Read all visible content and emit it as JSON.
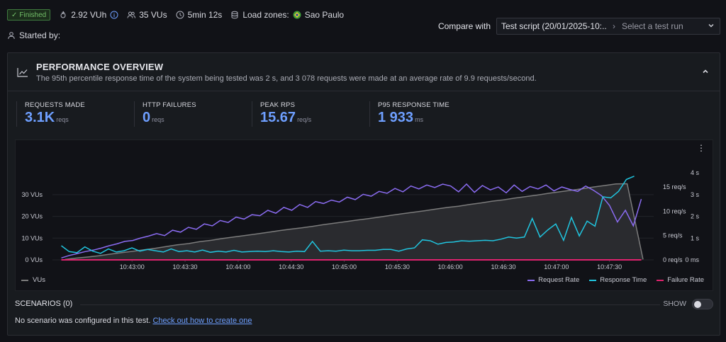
{
  "status": {
    "badge": "Finished",
    "vuh": "2.92 VUh",
    "vus": "35 VUs",
    "duration": "5min 12s",
    "load_zones_label": "Load zones:",
    "zone": "Sao Paulo"
  },
  "started_by": "Started by:",
  "compare": {
    "label": "Compare with",
    "value": "Test script (20/01/2025-10:...",
    "separator": "›",
    "placeholder": "Select a test run"
  },
  "overview": {
    "title": "PERFORMANCE OVERVIEW",
    "description": "The 95th percentile response time of the system being tested was 2 s, and 3 078 requests were made at an average rate of 9.9 requests/second."
  },
  "metrics": [
    {
      "label": "REQUESTS MADE",
      "value": "3.1K",
      "unit": "reqs"
    },
    {
      "label": "HTTP FAILURES",
      "value": "0",
      "unit": "reqs"
    },
    {
      "label": "PEAK RPS",
      "value": "15.67",
      "unit": "req/s"
    },
    {
      "label": "P95 RESPONSE TIME",
      "value": "1 933",
      "unit": "ms"
    }
  ],
  "chart_data": {
    "type": "line",
    "x_ticks": [
      "10:43:00",
      "10:43:30",
      "10:44:00",
      "10:44:30",
      "10:45:00",
      "10:45:30",
      "10:46:00",
      "10:46:30",
      "10:47:00",
      "10:47:30"
    ],
    "y_left_ticks": [
      "0 VUs",
      "10 VUs",
      "20 VUs",
      "30 VUs"
    ],
    "y_mid_ticks": [
      "0 req/s",
      "5 req/s",
      "10 req/s",
      "15 req/s"
    ],
    "y_right_ticks": [
      "0 ms",
      "1 s",
      "2 s",
      "3 s",
      "4 s"
    ],
    "x_range_seconds": [
      -45,
      295
    ],
    "legend": {
      "vus": "VUs",
      "request_rate": "Request Rate",
      "response_time": "Response Time",
      "failure_rate": "Failure Rate"
    },
    "colors": {
      "vus": "#7c7c7c",
      "request_rate": "#8b6cf2",
      "response_time": "#20c5df",
      "failure_rate": "#e0226e"
    },
    "series": [
      {
        "name": "VUs",
        "unit": "VUs",
        "values": [
          0.2,
          0.8,
          1.3,
          1.9,
          2.6,
          3.3,
          3.9,
          4.6,
          5.3,
          6.1,
          6.9,
          7.5,
          8.4,
          9.0,
          9.8,
          10.5,
          11.2,
          11.9,
          12.6,
          13.4,
          14.1,
          14.7,
          15.4,
          16.2,
          16.9,
          17.6,
          18.3,
          19.0,
          19.7,
          20.5,
          21.2,
          21.9,
          22.6,
          23.4,
          24.1,
          24.7,
          25.5,
          26.2,
          27.0,
          27.6,
          28.4,
          29.1,
          29.8,
          30.6,
          31.3,
          32.0,
          32.7,
          33.5,
          34.2,
          34.9,
          35.0,
          0.2
        ]
      },
      {
        "name": "Request Rate",
        "unit": "req/s",
        "values": [
          0.4,
          0.9,
          1.3,
          1.7,
          2.0,
          2.4,
          2.9,
          3.3,
          3.8,
          4.0,
          4.5,
          4.9,
          5.4,
          5.0,
          6.1,
          5.7,
          6.7,
          6.3,
          7.4,
          7.0,
          8.1,
          7.7,
          8.8,
          8.4,
          9.3,
          9.1,
          10.2,
          9.6,
          10.8,
          10.2,
          11.4,
          10.8,
          12.0,
          11.6,
          12.3,
          11.9,
          12.9,
          12.4,
          13.5,
          13.1,
          14.1,
          13.7,
          14.7,
          14.0,
          15.2,
          14.6,
          15.4,
          14.9,
          15.6,
          15.2,
          14.0,
          15.6,
          13.9,
          15.3,
          14.4,
          15.0,
          13.8,
          15.4,
          14.1,
          15.1,
          14.6,
          15.4,
          14.2,
          15.0,
          14.5,
          14.1,
          15.2,
          14.3,
          13.2,
          11.2,
          7.8,
          10.2,
          7.0,
          12.5
        ]
      },
      {
        "name": "Response Time",
        "unit": "s",
        "values": [
          0.65,
          0.38,
          0.33,
          0.6,
          0.4,
          0.3,
          0.5,
          0.36,
          0.42,
          0.55,
          0.4,
          0.48,
          0.42,
          0.36,
          0.5,
          0.38,
          0.42,
          0.36,
          0.45,
          0.35,
          0.4,
          0.36,
          0.44,
          0.36,
          0.38,
          0.4,
          0.38,
          0.42,
          0.38,
          0.36,
          0.4,
          0.38,
          0.85,
          0.4,
          0.42,
          0.4,
          0.45,
          0.42,
          0.42,
          0.44,
          0.44,
          0.48,
          0.48,
          0.4,
          0.5,
          0.55,
          0.92,
          0.88,
          0.72,
          0.8,
          0.82,
          0.88,
          0.86,
          0.88,
          0.9,
          0.88,
          0.95,
          1.05,
          1.0,
          1.05,
          1.9,
          1.05,
          1.38,
          1.65,
          0.9,
          1.95,
          1.1,
          1.78,
          1.55,
          2.9,
          2.85,
          3.15,
          3.7,
          3.85
        ]
      },
      {
        "name": "Failure Rate",
        "unit": "req/s",
        "values": [
          0,
          0
        ]
      }
    ]
  },
  "scenarios": {
    "title": "SCENARIOS (0)",
    "show_label": "SHOW",
    "message": "No scenario was configured in this test.",
    "link": "Check out how to create one"
  }
}
